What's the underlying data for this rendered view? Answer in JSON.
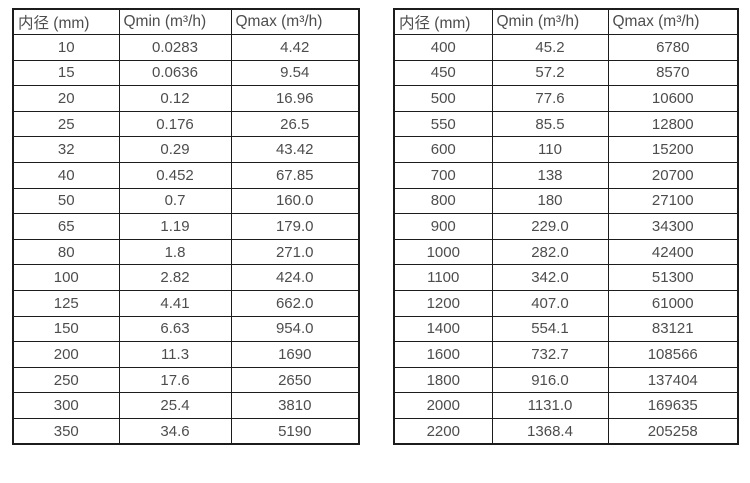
{
  "page": {
    "background": "#ffffff",
    "text_color": "#4d4d4d",
    "border_color": "#1c1c1c"
  },
  "tables": [
    {
      "name": "flow-spec-table-small-diameters",
      "headers": [
        "内径 (mm)",
        "Qmin (m³/h)",
        "Qmax (m³/h)"
      ],
      "rows": [
        [
          "10",
          "0.0283",
          "4.42"
        ],
        [
          "15",
          "0.0636",
          "9.54"
        ],
        [
          "20",
          "0.12",
          "16.96"
        ],
        [
          "25",
          "0.176",
          "26.5"
        ],
        [
          "32",
          "0.29",
          "43.42"
        ],
        [
          "40",
          "0.452",
          "67.85"
        ],
        [
          "50",
          "0.7",
          "160.0"
        ],
        [
          "65",
          "1.19",
          "179.0"
        ],
        [
          "80",
          "1.8",
          "271.0"
        ],
        [
          "100",
          "2.82",
          "424.0"
        ],
        [
          "125",
          "4.41",
          "662.0"
        ],
        [
          "150",
          "6.63",
          "954.0"
        ],
        [
          "200",
          "11.3",
          "1690"
        ],
        [
          "250",
          "17.6",
          "2650"
        ],
        [
          "300",
          "25.4",
          "3810"
        ],
        [
          "350",
          "34.6",
          "5190"
        ]
      ]
    },
    {
      "name": "flow-spec-table-large-diameters",
      "headers": [
        "内径 (mm)",
        "Qmin (m³/h)",
        "Qmax (m³/h)"
      ],
      "rows": [
        [
          "400",
          "45.2",
          "6780"
        ],
        [
          "450",
          "57.2",
          "8570"
        ],
        [
          "500",
          "77.6",
          "10600"
        ],
        [
          "550",
          "85.5",
          "12800"
        ],
        [
          "600",
          "110",
          "15200"
        ],
        [
          "700",
          "138",
          "20700"
        ],
        [
          "800",
          "180",
          "27100"
        ],
        [
          "900",
          "229.0",
          "34300"
        ],
        [
          "1000",
          "282.0",
          "42400"
        ],
        [
          "1100",
          "342.0",
          "51300"
        ],
        [
          "1200",
          "407.0",
          "61000"
        ],
        [
          "1400",
          "554.1",
          "83121"
        ],
        [
          "1600",
          "732.7",
          "108566"
        ],
        [
          "1800",
          "916.0",
          "137404"
        ],
        [
          "2000",
          "1131.0",
          "169635"
        ],
        [
          "2200",
          "1368.4",
          "205258"
        ]
      ]
    }
  ]
}
